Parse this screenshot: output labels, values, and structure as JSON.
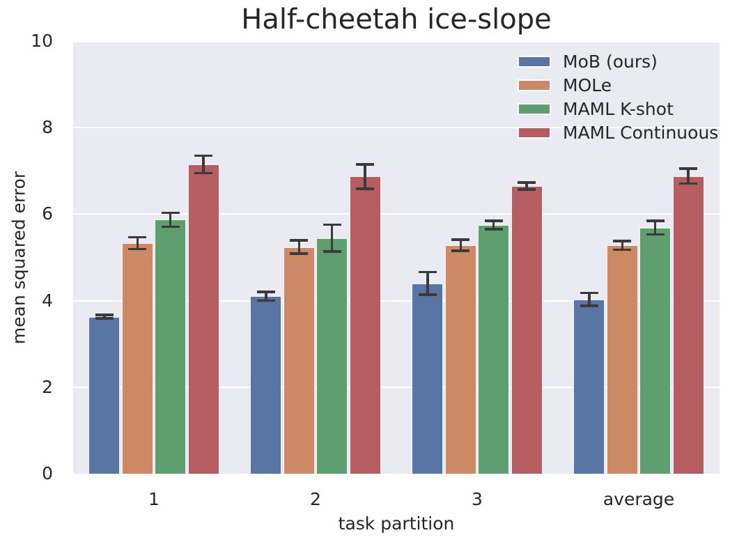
{
  "chart_data": {
    "type": "bar",
    "title": "Half-cheetah ice-slope",
    "xlabel": "task partition",
    "ylabel": "mean squared error",
    "categories": [
      "1",
      "2",
      "3",
      "average"
    ],
    "series": [
      {
        "name": "MoB (ours)",
        "color": "#5975A4",
        "values": [
          3.63,
          4.1,
          4.4,
          4.03
        ],
        "errors": [
          0.04,
          0.1,
          0.26,
          0.15
        ]
      },
      {
        "name": "MOLe",
        "color": "#CC8963",
        "values": [
          5.33,
          5.24,
          5.28,
          5.28
        ],
        "errors": [
          0.14,
          0.15,
          0.13,
          0.1
        ]
      },
      {
        "name": "MAML K-shot",
        "color": "#5F9E6E",
        "values": [
          5.87,
          5.45,
          5.75,
          5.69
        ],
        "errors": [
          0.16,
          0.31,
          0.1,
          0.16
        ]
      },
      {
        "name": "MAML Continuous",
        "color": "#B55D60",
        "values": [
          7.15,
          6.87,
          6.65,
          6.88
        ],
        "errors": [
          0.2,
          0.28,
          0.08,
          0.17
        ]
      }
    ],
    "ylim": [
      0,
      10
    ],
    "yticks": [
      0,
      2,
      4,
      6,
      8,
      10
    ],
    "grid": true,
    "legend_position": "upper right",
    "colors": {
      "plot_bg": "#EAEAF2",
      "figure_bg": "#FFFFFF",
      "grid_color": "#FFFFFF",
      "errorbar_color": "#3A3A3A",
      "text_color": "#262626"
    }
  }
}
